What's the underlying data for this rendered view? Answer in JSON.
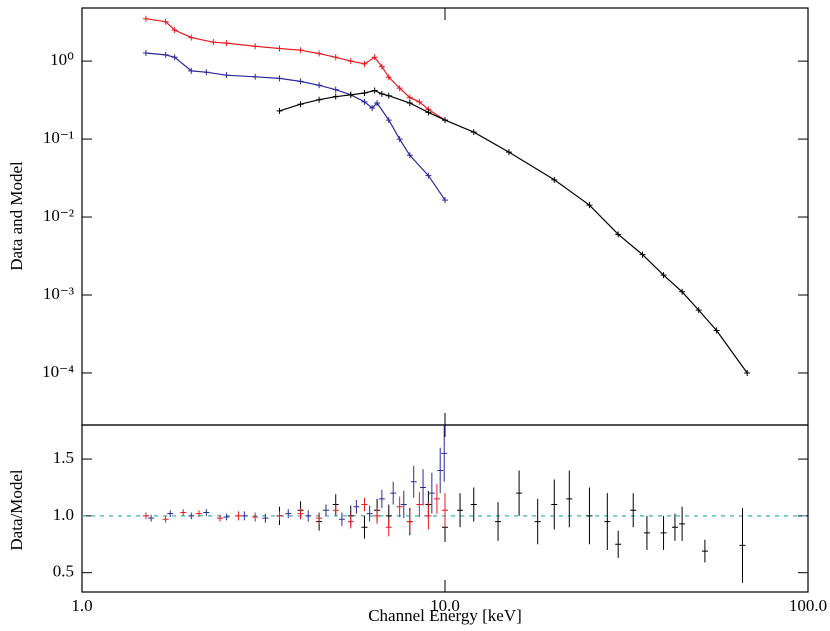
{
  "chart_data": [
    {
      "type": "line",
      "ylabel": "Data and Model",
      "xlog": true,
      "ylog": true,
      "xlim": [
        1,
        100
      ],
      "ylim": [
        2.15e-05,
        4.8
      ],
      "yticks": [
        {
          "value": 0.0001,
          "label": "10⁻⁴"
        },
        {
          "value": 0.001,
          "label": "10⁻³"
        },
        {
          "value": 0.01,
          "label": "10⁻²"
        },
        {
          "value": 0.1,
          "label": "10⁻¹"
        },
        {
          "value": 1,
          "label": "10⁰"
        }
      ],
      "series": [
        {
          "color": "#e8191e",
          "x": [
            1.5,
            1.7,
            1.8,
            2.0,
            2.3,
            2.5,
            3,
            3.5,
            4,
            4.5,
            5,
            5.5,
            6,
            6.4,
            6.7,
            7,
            7.5,
            8,
            8.5,
            9,
            10
          ],
          "values": [
            3.5,
            3.2,
            2.5,
            2.0,
            1.75,
            1.7,
            1.55,
            1.45,
            1.38,
            1.25,
            1.12,
            1.0,
            0.92,
            1.12,
            0.85,
            0.62,
            0.45,
            0.34,
            0.3,
            0.24,
            0.175
          ]
        },
        {
          "color": "#2a2a9c",
          "x": [
            1.5,
            1.7,
            1.8,
            2.0,
            2.2,
            2.5,
            3,
            3.5,
            4,
            4.5,
            5,
            5.5,
            6,
            6.3,
            6.5,
            7,
            7.5,
            8,
            9,
            10
          ],
          "values": [
            1.27,
            1.2,
            1.12,
            0.75,
            0.72,
            0.66,
            0.63,
            0.6,
            0.55,
            0.49,
            0.43,
            0.37,
            0.3,
            0.25,
            0.29,
            0.175,
            0.1,
            0.062,
            0.034,
            0.0165
          ]
        },
        {
          "color": "#000000",
          "x": [
            3.5,
            4,
            4.5,
            5,
            5.5,
            6,
            6.4,
            6.7,
            7,
            8,
            9,
            10,
            12,
            15,
            20,
            25,
            30,
            35,
            40,
            45,
            50,
            56,
            68
          ],
          "values": [
            0.23,
            0.28,
            0.32,
            0.35,
            0.37,
            0.39,
            0.42,
            0.38,
            0.36,
            0.29,
            0.22,
            0.175,
            0.123,
            0.068,
            0.03,
            0.0142,
            0.006,
            0.0033,
            0.0018,
            0.0011,
            0.00064,
            0.00035,
            0.0001
          ]
        }
      ]
    },
    {
      "type": "errorbar",
      "ylabel": "Data/Model",
      "xlabel": "Channel Energy [keV]",
      "xlog": true,
      "xlim": [
        1,
        100
      ],
      "ylim": [
        0.33,
        1.8
      ],
      "xticks": [
        {
          "value": 1,
          "label": "1.0"
        },
        {
          "value": 10,
          "label": "10.0"
        },
        {
          "value": 100,
          "label": "100.0"
        }
      ],
      "yticks": [
        {
          "value": 0.5,
          "label": "0.5"
        },
        {
          "value": 1,
          "label": "1.0"
        },
        {
          "value": 1.5,
          "label": "1.5"
        }
      ],
      "refline": 1,
      "refline_color": "#3cb4b4",
      "series": [
        {
          "color": "#000000",
          "x": [
            3.5,
            4,
            4.5,
            5,
            5.5,
            6,
            6.5,
            7,
            8,
            9,
            10,
            11,
            12,
            14,
            16,
            18,
            20,
            22,
            25,
            28,
            30,
            33,
            36,
            40,
            43,
            45,
            52,
            66
          ],
          "values": [
            1.0,
            1.05,
            0.95,
            1.1,
            1.0,
            0.9,
            1.05,
            1.0,
            0.95,
            1.1,
            0.9,
            1.05,
            1.1,
            0.95,
            1.2,
            0.95,
            1.1,
            1.15,
            1.0,
            0.95,
            0.75,
            1.05,
            0.85,
            0.85,
            0.9,
            0.93,
            0.69,
            0.74
          ],
          "errors": [
            0.08,
            0.08,
            0.08,
            0.09,
            0.09,
            0.1,
            0.1,
            0.1,
            0.12,
            0.12,
            0.13,
            0.15,
            0.15,
            0.17,
            0.2,
            0.2,
            0.22,
            0.25,
            0.25,
            0.25,
            0.12,
            0.15,
            0.15,
            0.15,
            0.12,
            0.15,
            0.1,
            0.33
          ]
        },
        {
          "color": "#e8191e",
          "x": [
            1.5,
            1.7,
            1.9,
            2.1,
            2.4,
            2.7,
            3,
            3.5,
            4,
            4.5,
            5,
            5.5,
            6,
            6.5,
            7,
            7.5,
            8,
            8.5,
            9,
            9.5,
            10
          ],
          "values": [
            1.0,
            0.97,
            1.03,
            1.02,
            0.98,
            1.0,
            0.99,
            1.0,
            1.02,
            0.98,
            1.05,
            0.95,
            1.1,
            1.0,
            0.9,
            1.08,
            0.95,
            1.1,
            1.0,
            1.15,
            1.05
          ],
          "errors": [
            0.03,
            0.03,
            0.03,
            0.03,
            0.03,
            0.04,
            0.04,
            0.04,
            0.05,
            0.05,
            0.05,
            0.06,
            0.06,
            0.07,
            0.08,
            0.09,
            0.1,
            0.11,
            0.12,
            0.13,
            0.15
          ]
        },
        {
          "color": "#2a2a9c",
          "x": [
            1.55,
            1.75,
            2,
            2.2,
            2.5,
            2.8,
            3.2,
            3.7,
            4.2,
            4.7,
            5.2,
            5.7,
            6.2,
            6.7,
            7.2,
            7.7,
            8.2,
            8.7,
            9.2,
            9.7,
            9.95
          ],
          "values": [
            0.98,
            1.02,
            1.0,
            1.03,
            0.99,
            1.0,
            0.98,
            1.02,
            1.0,
            1.05,
            0.97,
            1.08,
            1.02,
            1.15,
            1.2,
            1.1,
            1.3,
            1.25,
            1.2,
            1.4,
            1.55
          ],
          "errors": [
            0.03,
            0.03,
            0.03,
            0.03,
            0.03,
            0.04,
            0.04,
            0.04,
            0.05,
            0.05,
            0.06,
            0.06,
            0.07,
            0.08,
            0.1,
            0.12,
            0.14,
            0.16,
            0.18,
            0.2,
            0.25
          ]
        }
      ]
    }
  ]
}
